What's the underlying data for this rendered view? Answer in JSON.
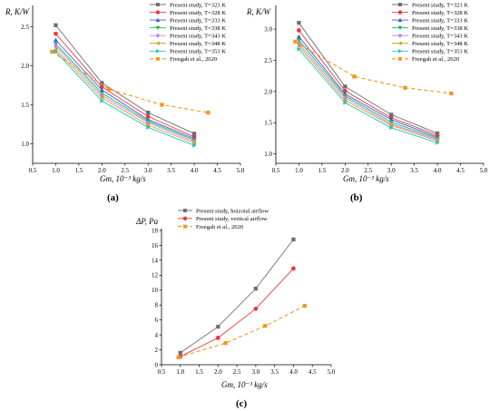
{
  "chart_data": [
    {
      "type": "line",
      "panel": "(a)",
      "ylabel": "R, K/W",
      "xlabel": "Gm, 10⁻³ kg/s",
      "xlim": [
        0.5,
        5.0
      ],
      "ylim": [
        0.75,
        2.75
      ],
      "xticks": [
        0.5,
        1.0,
        1.5,
        2.0,
        2.5,
        3.0,
        3.5,
        4.0,
        4.5,
        5.0
      ],
      "xtick_labels": [
        "0.5",
        "1.0",
        "1.5",
        "2.0",
        "2.5",
        "3.0",
        "3.5",
        "4.0",
        "4.5",
        "5.0"
      ],
      "yticks": [
        1.0,
        1.5,
        2.0,
        2.5
      ],
      "ytick_labels": [
        "1.0",
        "1.5",
        "2.0",
        "2.5"
      ],
      "legend_position": "top-right",
      "series": [
        {
          "name": "Present study, T=323 K",
          "color": "#6d6d6d",
          "marker": "square",
          "dashed": false,
          "x": [
            1,
            2,
            3,
            4
          ],
          "y": [
            2.52,
            1.78,
            1.4,
            1.13
          ]
        },
        {
          "name": "Present study, T=328 K",
          "color": "#e8383d",
          "marker": "circle",
          "dashed": false,
          "x": [
            1,
            2,
            3,
            4
          ],
          "y": [
            2.41,
            1.73,
            1.35,
            1.09
          ]
        },
        {
          "name": "Present study, T=333 K",
          "color": "#3b5bd6",
          "marker": "triangle-up",
          "dashed": false,
          "x": [
            1,
            2,
            3,
            4
          ],
          "y": [
            2.33,
            1.69,
            1.31,
            1.07
          ]
        },
        {
          "name": "Present study, T=338 K",
          "color": "#1bb35c",
          "marker": "triangle-down",
          "dashed": false,
          "x": [
            1,
            2,
            3,
            4
          ],
          "y": [
            2.28,
            1.65,
            1.29,
            1.05
          ]
        },
        {
          "name": "Present study, T=343 K",
          "color": "#c77fe0",
          "marker": "diamond",
          "dashed": false,
          "x": [
            1,
            2,
            3,
            4
          ],
          "y": [
            2.25,
            1.62,
            1.27,
            1.03
          ]
        },
        {
          "name": "Present study, T=348 K",
          "color": "#c9a422",
          "marker": "triangle-left",
          "dashed": false,
          "x": [
            1,
            2,
            3,
            4
          ],
          "y": [
            2.21,
            1.59,
            1.24,
            1.01
          ]
        },
        {
          "name": "Present study, T=353 K",
          "color": "#22c1c9",
          "marker": "triangle-right",
          "dashed": false,
          "x": [
            1,
            2,
            3,
            4
          ],
          "y": [
            2.18,
            1.55,
            1.21,
            0.98
          ]
        },
        {
          "name": "Freegah et al., 2020",
          "color": "#f7931e",
          "marker": "square",
          "dashed": true,
          "x": [
            0.92,
            2.15,
            3.3,
            4.3
          ],
          "y": [
            2.18,
            1.7,
            1.5,
            1.4
          ]
        }
      ]
    },
    {
      "type": "line",
      "panel": "(b)",
      "ylabel": "R, K/W",
      "xlabel": "Gm, 10⁻³ kg/s",
      "xlim": [
        0.5,
        5.0
      ],
      "ylim": [
        0.85,
        3.35
      ],
      "xticks": [
        0.5,
        1.0,
        1.5,
        2.0,
        2.5,
        3.0,
        3.5,
        4.0,
        4.5,
        5.0
      ],
      "xtick_labels": [
        "0.5",
        "1.0",
        "1.5",
        "2.0",
        "2.5",
        "3.0",
        "3.5",
        "4.0",
        "4.5",
        "5.0"
      ],
      "yticks": [
        1.0,
        1.5,
        2.0,
        2.5,
        3.0
      ],
      "ytick_labels": [
        "1.0",
        "1.5",
        "2.0",
        "2.5",
        "3.0"
      ],
      "legend_position": "top-right",
      "series": [
        {
          "name": "Present study, T=323 K",
          "color": "#6d6d6d",
          "marker": "square",
          "dashed": false,
          "x": [
            1,
            2,
            3,
            4
          ],
          "y": [
            3.1,
            2.08,
            1.63,
            1.33
          ]
        },
        {
          "name": "Present study, T=328 K",
          "color": "#e8383d",
          "marker": "circle",
          "dashed": false,
          "x": [
            1,
            2,
            3,
            4
          ],
          "y": [
            2.98,
            2.01,
            1.58,
            1.3
          ]
        },
        {
          "name": "Present study, T=333 K",
          "color": "#3b5bd6",
          "marker": "triangle-up",
          "dashed": false,
          "x": [
            1,
            2,
            3,
            4
          ],
          "y": [
            2.88,
            1.96,
            1.55,
            1.27
          ]
        },
        {
          "name": "Present study, T=338 K",
          "color": "#1bb35c",
          "marker": "triangle-down",
          "dashed": false,
          "x": [
            1,
            2,
            3,
            4
          ],
          "y": [
            2.82,
            1.93,
            1.51,
            1.25
          ]
        },
        {
          "name": "Present study, T=343 K",
          "color": "#c77fe0",
          "marker": "diamond",
          "dashed": false,
          "x": [
            1,
            2,
            3,
            4
          ],
          "y": [
            2.77,
            1.9,
            1.48,
            1.23
          ]
        },
        {
          "name": "Present study, T=348 K",
          "color": "#c9a422",
          "marker": "triangle-left",
          "dashed": false,
          "x": [
            1,
            2,
            3,
            4
          ],
          "y": [
            2.73,
            1.86,
            1.46,
            1.21
          ]
        },
        {
          "name": "Present study, T=353 K",
          "color": "#22c1c9",
          "marker": "triangle-right",
          "dashed": false,
          "x": [
            1,
            2,
            3,
            4
          ],
          "y": [
            2.68,
            1.82,
            1.42,
            1.18
          ]
        },
        {
          "name": "Freegah et al., 2020",
          "color": "#f7931e",
          "marker": "square",
          "dashed": true,
          "x": [
            0.92,
            2.2,
            3.3,
            4.3
          ],
          "y": [
            2.8,
            2.24,
            2.06,
            1.97
          ]
        }
      ]
    },
    {
      "type": "line",
      "panel": "(c)",
      "ylabel": "ΔP, Pa",
      "xlabel": "Gm, 10⁻³ kg/s",
      "xlim": [
        0.5,
        5.0
      ],
      "ylim": [
        0,
        18
      ],
      "xticks": [
        0.5,
        1.0,
        1.5,
        2.0,
        2.5,
        3.0,
        3.5,
        4.0,
        4.5,
        5.0
      ],
      "xtick_labels": [
        "0.5",
        "1.0",
        "1.5",
        "2.0",
        "2.5",
        "3.0",
        "3.5",
        "4.0",
        "4.5",
        "5.0"
      ],
      "yticks": [
        0,
        2,
        4,
        6,
        8,
        10,
        12,
        14,
        16,
        18
      ],
      "ytick_labels": [
        "0",
        "2",
        "4",
        "6",
        "8",
        "10",
        "12",
        "14",
        "16",
        "18"
      ],
      "legend_position": "top-left",
      "series": [
        {
          "name": "Present study, hoizotal airflow",
          "color": "#6d6d6d",
          "marker": "square",
          "dashed": false,
          "x": [
            1,
            2,
            3,
            4
          ],
          "y": [
            1.6,
            5.1,
            10.2,
            16.8
          ]
        },
        {
          "name": "Present study, vertical airflow",
          "color": "#e8383d",
          "marker": "circle",
          "dashed": false,
          "x": [
            1,
            2,
            3,
            4
          ],
          "y": [
            1.1,
            3.6,
            7.5,
            12.9
          ]
        },
        {
          "name": "Freegah et al., 2020",
          "color": "#f7931e",
          "marker": "square",
          "dashed": true,
          "x": [
            0.95,
            2.2,
            3.25,
            4.3
          ],
          "y": [
            1.0,
            2.9,
            5.2,
            7.9
          ]
        }
      ]
    }
  ]
}
